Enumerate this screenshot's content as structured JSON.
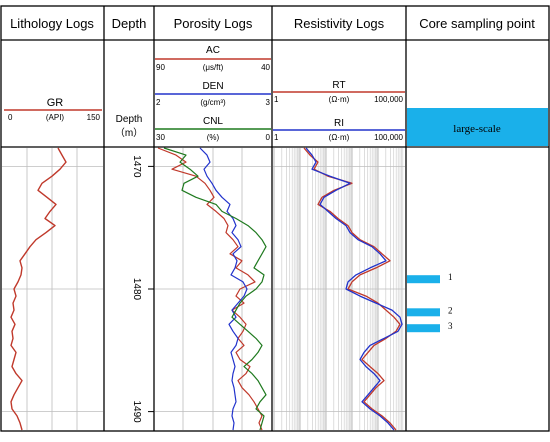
{
  "tracks": {
    "lithology": {
      "title": "Lithology Logs",
      "curve": {
        "name": "GR",
        "unit": "(API)",
        "min": "0",
        "max": "150",
        "color": "#c0392b"
      }
    },
    "depth": {
      "title": "Depth",
      "header_label": "Depth",
      "header_unit": "（m）",
      "ticks": [
        "1470",
        "1480",
        "1490"
      ]
    },
    "porosity": {
      "title": "Porosity Logs",
      "curves": [
        {
          "name": "AC",
          "unit": "(μs/ft)",
          "min": "90",
          "max": "40",
          "color": "#c0392b"
        },
        {
          "name": "DEN",
          "unit": "(g/cm³)",
          "min": "2",
          "max": "3",
          "color": "#2233cc"
        },
        {
          "name": "CNL",
          "unit": "(%)",
          "min": "30",
          "max": "0",
          "color": "#1f7a1f"
        }
      ]
    },
    "resistivity": {
      "title": "Resistivity Logs",
      "curves": [
        {
          "name": "RT",
          "unit": "(Ω·m)",
          "min": "1",
          "max": "100,000",
          "color": "#c0392b"
        },
        {
          "name": "RI",
          "unit": "(Ω·m)",
          "min": "1",
          "max": "100,000",
          "color": "#2233cc"
        }
      ]
    },
    "core": {
      "title": "Core sampling point",
      "legend_label": "large-scale",
      "color": "#1ab0ea",
      "samples": [
        {
          "label": "1",
          "depth": 1479.2
        },
        {
          "label": "2",
          "depth": 1481.9
        },
        {
          "label": "3",
          "depth": 1483.2
        }
      ]
    }
  },
  "depth_range": [
    1468.5,
    1491.5
  ]
}
